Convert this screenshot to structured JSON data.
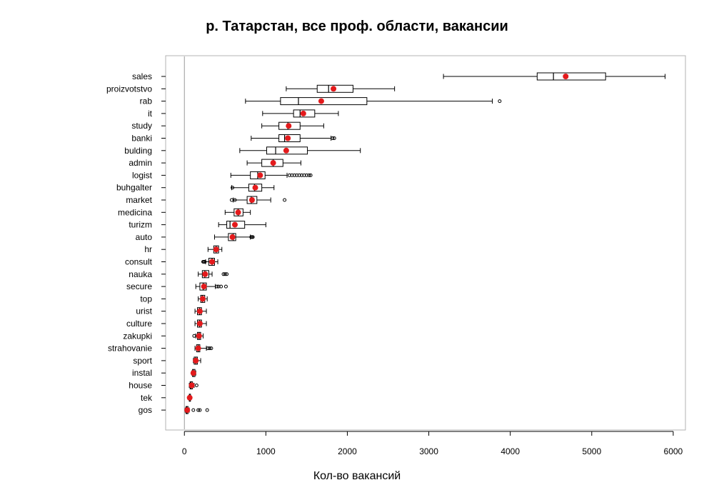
{
  "chart_data": {
    "type": "boxplot",
    "title": "р. Татарстан, все проф. области, вакансии",
    "xlabel": "Кол-во вакансий",
    "ylabel": "",
    "xlim": [
      -230,
      6150
    ],
    "x_ticks": [
      0,
      1000,
      2000,
      3000,
      4000,
      5000,
      6000
    ],
    "orientation": "horizontal",
    "grid": false,
    "reference_line_x": 0,
    "colors": {
      "mean_point": "#e31a1c",
      "box": "#000000",
      "frame": "#b3b3b3",
      "ref_line": "#999999"
    },
    "categories": [
      "sales",
      "proizvotstvo",
      "rab",
      "it",
      "study",
      "banki",
      "bulding",
      "admin",
      "logist",
      "buhgalter",
      "market",
      "medicina",
      "turizm",
      "auto",
      "hr",
      "consult",
      "nauka",
      "secure",
      "top",
      "urist",
      "culture",
      "zakupki",
      "strahovanie",
      "sport",
      "instal",
      "house",
      "tek",
      "gos"
    ],
    "boxes": [
      {
        "name": "sales",
        "wlo": 3180,
        "q1": 4330,
        "med": 4530,
        "q3": 5170,
        "whi": 5900,
        "mean": 4680,
        "out": []
      },
      {
        "name": "proizvotstvo",
        "wlo": 1250,
        "q1": 1630,
        "med": 1770,
        "q3": 2070,
        "whi": 2580,
        "mean": 1830,
        "out": []
      },
      {
        "name": "rab",
        "wlo": 750,
        "q1": 1180,
        "med": 1400,
        "q3": 2240,
        "whi": 3780,
        "mean": 1680,
        "out": [
          3870
        ]
      },
      {
        "name": "it",
        "wlo": 960,
        "q1": 1340,
        "med": 1420,
        "q3": 1600,
        "whi": 1890,
        "mean": 1460,
        "out": []
      },
      {
        "name": "study",
        "wlo": 950,
        "q1": 1160,
        "med": 1270,
        "q3": 1420,
        "whi": 1710,
        "mean": 1280,
        "out": []
      },
      {
        "name": "banki",
        "wlo": 820,
        "q1": 1160,
        "med": 1230,
        "q3": 1420,
        "whi": 1800,
        "mean": 1270,
        "out": [
          1820,
          1840
        ]
      },
      {
        "name": "bulding",
        "wlo": 680,
        "q1": 1010,
        "med": 1120,
        "q3": 1510,
        "whi": 2160,
        "mean": 1250,
        "out": []
      },
      {
        "name": "admin",
        "wlo": 770,
        "q1": 950,
        "med": 1090,
        "q3": 1210,
        "whi": 1430,
        "mean": 1090,
        "out": []
      },
      {
        "name": "logist",
        "wlo": 570,
        "q1": 810,
        "med": 900,
        "q3": 990,
        "whi": 1260,
        "mean": 930,
        "out": [
          1290,
          1320,
          1350,
          1380,
          1410,
          1440,
          1470,
          1500,
          1530,
          1550
        ]
      },
      {
        "name": "buhgalter",
        "wlo": 580,
        "q1": 790,
        "med": 860,
        "q3": 950,
        "whi": 1100,
        "mean": 870,
        "out": [
          590
        ]
      },
      {
        "name": "market",
        "wlo": 600,
        "q1": 770,
        "med": 820,
        "q3": 890,
        "whi": 1060,
        "mean": 830,
        "out": [
          580,
          620,
          1230
        ]
      },
      {
        "name": "medicina",
        "wlo": 500,
        "q1": 610,
        "med": 660,
        "q3": 720,
        "whi": 810,
        "mean": 660,
        "out": []
      },
      {
        "name": "turizm",
        "wlo": 420,
        "q1": 520,
        "med": 560,
        "q3": 740,
        "whi": 1000,
        "mean": 620,
        "out": []
      },
      {
        "name": "auto",
        "wlo": 370,
        "q1": 540,
        "med": 600,
        "q3": 630,
        "whi": 810,
        "mean": 590,
        "out": [
          820,
          830,
          840
        ]
      },
      {
        "name": "hr",
        "wlo": 290,
        "q1": 360,
        "med": 390,
        "q3": 420,
        "whi": 460,
        "mean": 390,
        "out": []
      },
      {
        "name": "consult",
        "wlo": 260,
        "q1": 300,
        "med": 340,
        "q3": 370,
        "whi": 410,
        "mean": 340,
        "out": [
          230,
          240,
          250
        ]
      },
      {
        "name": "nauka",
        "wlo": 170,
        "q1": 220,
        "med": 250,
        "q3": 300,
        "whi": 340,
        "mean": 255,
        "out": [
          480,
          500,
          520
        ]
      },
      {
        "name": "secure",
        "wlo": 140,
        "q1": 190,
        "med": 230,
        "q3": 270,
        "whi": 380,
        "mean": 240,
        "out": [
          400,
          420,
          450,
          510
        ]
      },
      {
        "name": "top",
        "wlo": 170,
        "q1": 200,
        "med": 220,
        "q3": 250,
        "whi": 280,
        "mean": 225,
        "out": []
      },
      {
        "name": "urist",
        "wlo": 130,
        "q1": 160,
        "med": 185,
        "q3": 210,
        "whi": 270,
        "mean": 190,
        "out": []
      },
      {
        "name": "culture",
        "wlo": 130,
        "q1": 160,
        "med": 185,
        "q3": 210,
        "whi": 270,
        "mean": 190,
        "out": []
      },
      {
        "name": "zakupki",
        "wlo": 140,
        "q1": 160,
        "med": 180,
        "q3": 200,
        "whi": 230,
        "mean": 180,
        "out": [
          120
        ]
      },
      {
        "name": "strahovanie",
        "wlo": 130,
        "q1": 150,
        "med": 170,
        "q3": 190,
        "whi": 270,
        "mean": 170,
        "out": [
          290,
          310,
          330
        ]
      },
      {
        "name": "sport",
        "wlo": 110,
        "q1": 120,
        "med": 140,
        "q3": 160,
        "whi": 200,
        "mean": 140,
        "out": []
      },
      {
        "name": "instal",
        "wlo": 90,
        "q1": 100,
        "med": 110,
        "q3": 130,
        "whi": 140,
        "mean": 110,
        "out": []
      },
      {
        "name": "house",
        "wlo": 60,
        "q1": 70,
        "med": 80,
        "q3": 100,
        "whi": 120,
        "mean": 90,
        "out": [
          150
        ]
      },
      {
        "name": "tek",
        "wlo": 50,
        "q1": 60,
        "med": 65,
        "q3": 75,
        "whi": 80,
        "mean": 65,
        "out": []
      },
      {
        "name": "gos",
        "wlo": 10,
        "q1": 20,
        "med": 30,
        "q3": 45,
        "whi": 60,
        "mean": 35,
        "out": [
          110,
          170,
          190,
          280
        ]
      }
    ]
  }
}
